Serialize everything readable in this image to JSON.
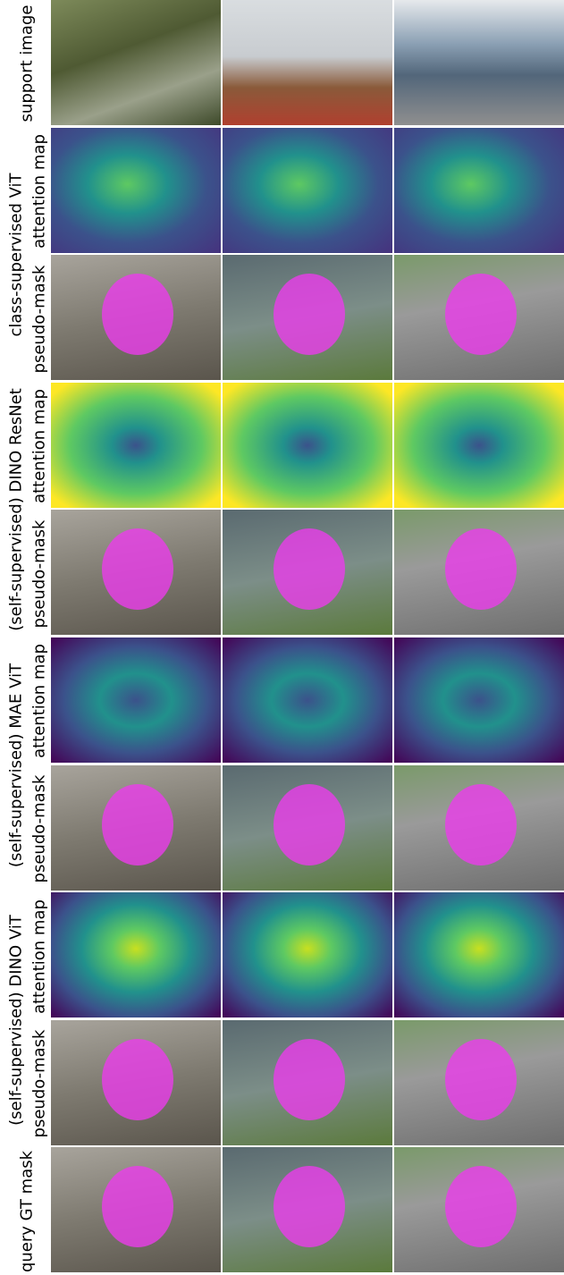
{
  "labels": {
    "support": "support image",
    "groups": [
      {
        "method": "class-supervised ViT",
        "attention": "attention map",
        "mask": "pseudo-mask"
      },
      {
        "method": "(self-supervised) DINO ResNet",
        "attention": "attention map",
        "mask": "pseudo-mask"
      },
      {
        "method": "(self-supervised) MAE ViT",
        "attention": "attention map",
        "mask": "pseudo-mask"
      },
      {
        "method": "(self-supervised) DINO ViT",
        "attention": "attention map",
        "mask": "pseudo-mask"
      }
    ],
    "query": "query GT mask"
  }
}
